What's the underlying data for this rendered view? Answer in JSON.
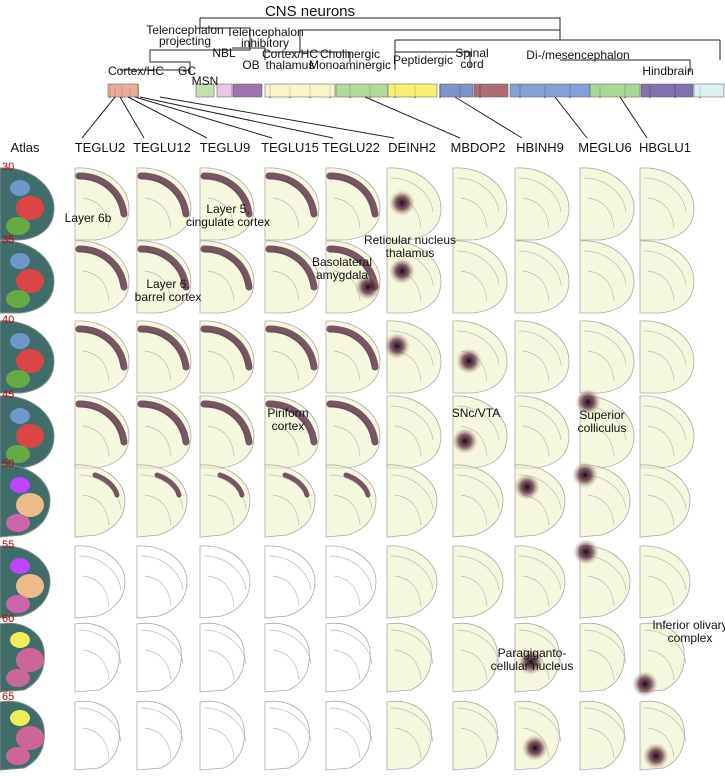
{
  "title": "CNS neurons",
  "tree_labels": [
    {
      "lines": [
        "Telencephalon",
        "projecting"
      ]
    },
    {
      "lines": [
        "Telencephalon",
        "inhibitory"
      ]
    },
    {
      "lines": [
        "NBL"
      ]
    },
    {
      "lines": [
        "Cortex/HC"
      ]
    },
    {
      "lines": [
        "GC"
      ]
    },
    {
      "lines": [
        "MSN"
      ]
    },
    {
      "lines": [
        "OB"
      ]
    },
    {
      "lines": [
        "Cortex/HC",
        "thalamus"
      ]
    },
    {
      "lines": [
        "Cholinergic",
        "Monoaminergic"
      ]
    },
    {
      "lines": [
        "Peptidergic"
      ]
    },
    {
      "lines": [
        "Spinal",
        "cord"
      ]
    },
    {
      "lines": [
        "Di-/mesencephalon"
      ]
    },
    {
      "lines": [
        "Hindbrain"
      ]
    }
  ],
  "atlas_label": "Atlas",
  "columns": [
    "TEGLU2",
    "TEGLU12",
    "TEGLU9",
    "TEGLU15",
    "TEGLU22",
    "DEINH2",
    "MBDOP2",
    "HBINH9",
    "MEGLU6",
    "HBGLU1"
  ],
  "rows": [
    "30",
    "35",
    "40",
    "45",
    "50",
    "55",
    "60",
    "65"
  ],
  "annotations": [
    {
      "lines": [
        "Layer 6b"
      ]
    },
    {
      "lines": [
        "Layer 5,",
        "cingulate cortex"
      ]
    },
    {
      "lines": [
        "Layer 6,",
        "barrel cortex"
      ]
    },
    {
      "lines": [
        "Basolateral",
        "amygdala"
      ]
    },
    {
      "lines": [
        "Reticular nucleus",
        "thalamus"
      ]
    },
    {
      "lines": [
        "Piriform",
        "cortex"
      ]
    },
    {
      "lines": [
        "SNc/VTA"
      ]
    },
    {
      "lines": [
        "Superior",
        "colliculus"
      ]
    },
    {
      "lines": [
        "Inferior olivary",
        "complex"
      ]
    },
    {
      "lines": [
        "Paragiganto-",
        "cellular nucleus"
      ]
    }
  ]
}
